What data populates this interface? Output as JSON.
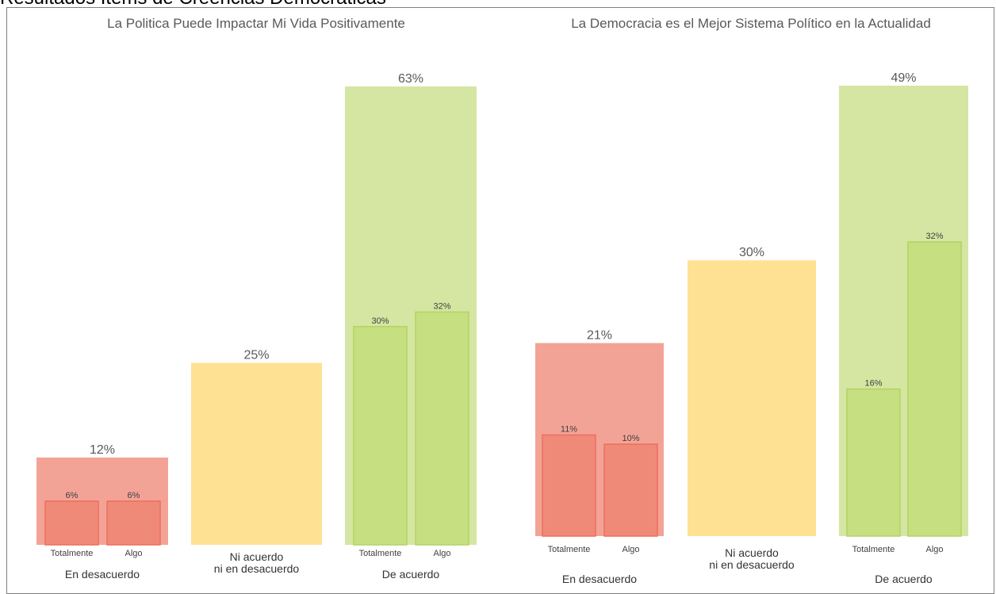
{
  "page_title": "Resultados Items de Creencias Democraticas",
  "colors": {
    "red_outer": "#f3a396",
    "red_inner": "#f08a78",
    "red_stroke": "#ec6f5c",
    "yellow": "#ffe193",
    "green_outer": "#d4e6a2",
    "green_inner": "#c6df80",
    "green_stroke": "#b3d462"
  },
  "chart_data": [
    {
      "type": "bar",
      "title": "La Politica Puede Impactar Mi Vida Positivamente",
      "ylim": [
        0,
        63
      ],
      "groups": [
        {
          "category": "En desacuerdo",
          "total": 12,
          "total_label": "12%",
          "color": "red",
          "subs": [
            {
              "name": "Totalmente",
              "value": 6,
              "label": "6%"
            },
            {
              "name": "Algo",
              "value": 6,
              "label": "6%"
            }
          ]
        },
        {
          "category": "Ni acuerdo\nni en desacuerdo",
          "total": 25,
          "total_label": "25%",
          "color": "yellow",
          "subs": []
        },
        {
          "category": "De acuerdo",
          "total": 63,
          "total_label": "63%",
          "color": "green",
          "subs": [
            {
              "name": "Totalmente",
              "value": 30,
              "label": "30%"
            },
            {
              "name": "Algo",
              "value": 32,
              "label": "32%"
            }
          ]
        }
      ]
    },
    {
      "type": "bar",
      "title": "La Democracia es el Mejor Sistema Político en la Actualidad",
      "ylim": [
        0,
        49
      ],
      "groups": [
        {
          "category": "En desacuerdo",
          "total": 21,
          "total_label": "21%",
          "color": "red",
          "subs": [
            {
              "name": "Totalmente",
              "value": 11,
              "label": "11%"
            },
            {
              "name": "Algo",
              "value": 10,
              "label": "10%"
            }
          ]
        },
        {
          "category": "Ni acuerdo\nni en desacuerdo",
          "total": 30,
          "total_label": "30%",
          "color": "yellow",
          "subs": []
        },
        {
          "category": "De acuerdo",
          "total": 49,
          "total_label": "49%",
          "color": "green",
          "subs": [
            {
              "name": "Totalmente",
              "value": 16,
              "label": "16%"
            },
            {
              "name": "Algo",
              "value": 32,
              "label": "32%"
            }
          ]
        }
      ]
    }
  ]
}
